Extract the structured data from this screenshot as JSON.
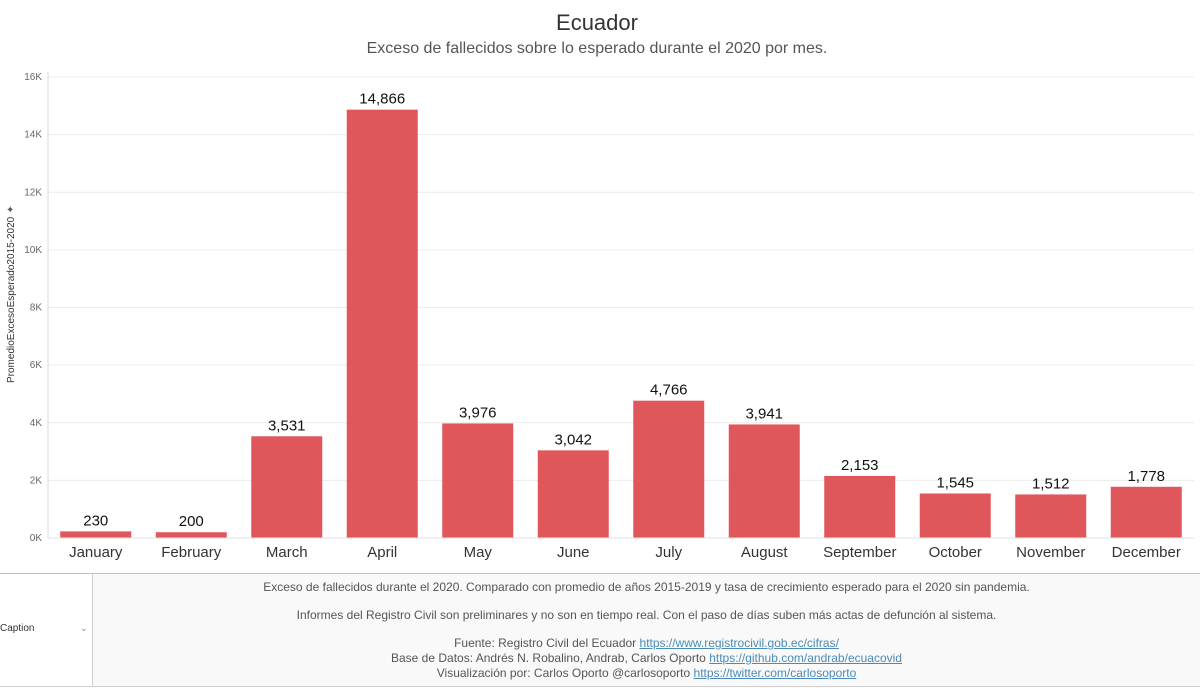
{
  "chart_data": {
    "type": "bar",
    "title": "Ecuador",
    "subtitle": "Exceso de fallecidos sobre lo esperado durante el 2020 por mes.",
    "ylabel": "PromedioExcesoEsperado2015-2020",
    "xlabel": "",
    "categories": [
      "January",
      "February",
      "March",
      "April",
      "May",
      "June",
      "July",
      "August",
      "September",
      "October",
      "November",
      "December"
    ],
    "values": [
      230,
      200,
      3531,
      14866,
      3976,
      3042,
      4766,
      3941,
      2153,
      1545,
      1512,
      1778
    ],
    "data_labels": [
      "230",
      "200",
      "3,531",
      "14,866",
      "3,976",
      "3,042",
      "4,766",
      "3,941",
      "2,153",
      "1,545",
      "1,512",
      "1,778"
    ],
    "ylim": [
      0,
      16000
    ],
    "yticks": [
      0,
      2000,
      4000,
      6000,
      8000,
      10000,
      12000,
      14000,
      16000
    ],
    "ytick_labels": [
      "0K",
      "2K",
      "4K",
      "6K",
      "8K",
      "10K",
      "12K",
      "14K",
      "16K"
    ],
    "grid": true,
    "legend": "none",
    "bar_color": "#e0575b"
  },
  "y_axis_pin_icon": "pin-icon",
  "caption": {
    "label": "Caption",
    "dropdown_icon": "chevron-down-icon",
    "line1": "Exceso de fallecidos durante el 2020. Comparado con promedio de años 2015-2019 y tasa de crecimiento esperado para el 2020 sin pandemia.",
    "line2": "Informes del Registro Civil son preliminares y no son en tiempo real. Con el paso de días suben más actas de defunción al sistema.",
    "source_text": "Fuente: Registro Civil del Ecuador",
    "source_link": "https://www.registrocivil.gob.ec/cifras/",
    "db_text": "Base de Datos: Andrés N. Robalino, Andrab, Carlos Oporto",
    "db_link": "https://github.com/andrab/ecuacovid",
    "viz_text": "Visualización por: Carlos Oporto @carlosoporto",
    "viz_link": "https://twitter.com/carlosoporto"
  }
}
